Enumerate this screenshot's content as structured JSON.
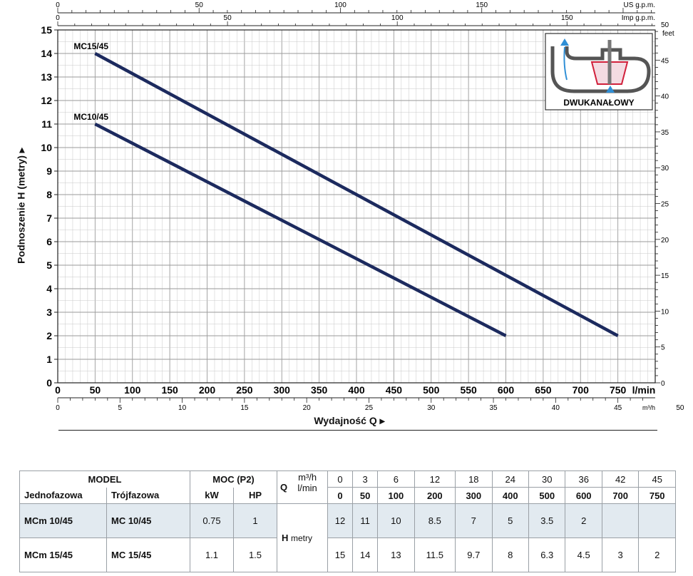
{
  "chart_data": {
    "type": "line",
    "title": "",
    "ylabel": "Podnoszenie H (metry) ▸",
    "xlabel": "Wydajność Q ▸",
    "x_unit": "l/min",
    "xlim": [
      0,
      800
    ],
    "ylim": [
      0,
      15
    ],
    "grid": true,
    "x_ticks": [
      "0",
      "50",
      "100",
      "150",
      "200",
      "250",
      "300",
      "350",
      "400",
      "450",
      "500",
      "550",
      "600",
      "650",
      "700",
      "750"
    ],
    "y_ticks": [
      "0",
      "1",
      "2",
      "3",
      "4",
      "5",
      "6",
      "7",
      "8",
      "9",
      "10",
      "11",
      "12",
      "13",
      "14",
      "15"
    ],
    "series": [
      {
        "name": "MC15/45",
        "color": "#1c2a5e",
        "x": [
          50,
          750
        ],
        "y": [
          14,
          2
        ]
      },
      {
        "name": "MC10/45",
        "color": "#1c2a5e",
        "x": [
          50,
          600
        ],
        "y": [
          11,
          2
        ]
      }
    ],
    "secondary_axes": {
      "us_gpm": {
        "label": "US g.p.m.",
        "ticks": [
          "0",
          "50",
          "100",
          "150"
        ]
      },
      "imp_gpm": {
        "label": "Imp g.p.m.",
        "ticks": [
          "0",
          "50",
          "100",
          "150"
        ]
      },
      "feet": {
        "label": "feet",
        "ticks": [
          "0",
          "5",
          "10",
          "15",
          "20",
          "25",
          "30",
          "35",
          "40",
          "45",
          "50"
        ]
      },
      "m3h": {
        "label": "m³/h",
        "ticks": [
          "0",
          "5",
          "10",
          "15",
          "20",
          "25",
          "30",
          "35",
          "40",
          "45",
          "50"
        ]
      }
    },
    "inset_label": "DWUKANAŁOWY"
  },
  "table": {
    "model": "MODEL",
    "jednofazowa": "Jednofazowa",
    "trojfazowa": "Trójfazowa",
    "power": "MOC (P2)",
    "kw": "kW",
    "hp": "HP",
    "q_label": "Q",
    "m3h_label": "m³/h",
    "lmin_label": "l/min",
    "h_label": "H",
    "metry": "metry",
    "q_m3h": [
      "0",
      "3",
      "6",
      "12",
      "18",
      "24",
      "30",
      "36",
      "42",
      "45"
    ],
    "q_lmin": [
      "0",
      "50",
      "100",
      "200",
      "300",
      "400",
      "500",
      "600",
      "700",
      "750"
    ],
    "rows": [
      {
        "single": "MCm 10/45",
        "three": "MC 10/45",
        "kw": "0.75",
        "hp": "1",
        "h": [
          "12",
          "11",
          "10",
          "8.5",
          "7",
          "5",
          "3.5",
          "2",
          "",
          ""
        ]
      },
      {
        "single": "MCm 15/45",
        "three": "MC 15/45",
        "kw": "1.1",
        "hp": "1.5",
        "h": [
          "15",
          "14",
          "13",
          "11.5",
          "9.7",
          "8",
          "6.3",
          "4.5",
          "3",
          "2"
        ]
      }
    ]
  }
}
